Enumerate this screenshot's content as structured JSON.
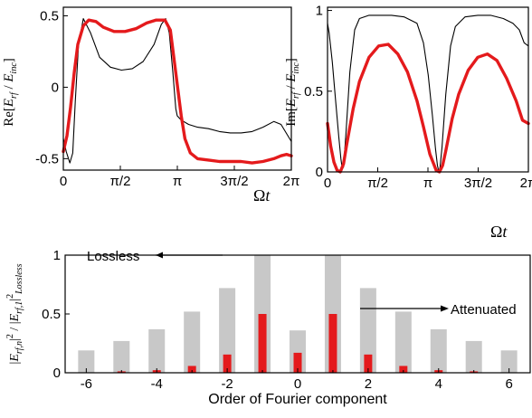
{
  "chart_data": [
    {
      "type": "line",
      "panel": "top-left",
      "ylabel": "Re[E_rf / E_inc]",
      "xlabel": "Ωt",
      "xlim": [
        0,
        6.2832
      ],
      "ylim": [
        -0.58,
        0.56
      ],
      "x_ticks": [
        "0",
        "π/2",
        "π",
        "3π/2",
        "2π"
      ],
      "y_ticks": [
        "-0.5",
        "0",
        "0.5"
      ],
      "series": [
        {
          "style": "thick red",
          "color": "#e41a1c",
          "x": [
            0,
            0.1,
            0.2,
            0.3,
            0.4,
            0.55,
            0.7,
            0.9,
            1.1,
            1.4,
            1.7,
            2.0,
            2.3,
            2.55,
            2.8,
            2.95,
            3.05,
            3.15,
            3.25,
            3.35,
            3.5,
            3.7,
            4.0,
            4.3,
            4.6,
            4.9,
            5.2,
            5.5,
            5.8,
            6.0,
            6.15,
            6.2832
          ],
          "y": [
            -0.45,
            -0.34,
            -0.14,
            0.1,
            0.3,
            0.43,
            0.47,
            0.46,
            0.42,
            0.39,
            0.39,
            0.41,
            0.45,
            0.47,
            0.47,
            0.4,
            0.2,
            0.0,
            -0.2,
            -0.36,
            -0.46,
            -0.5,
            -0.51,
            -0.52,
            -0.52,
            -0.52,
            -0.53,
            -0.52,
            -0.5,
            -0.48,
            -0.47,
            -0.48
          ]
        },
        {
          "style": "thin black",
          "color": "#000000",
          "x": [
            0,
            0.08,
            0.18,
            0.26,
            0.33,
            0.42,
            0.55,
            0.75,
            1.0,
            1.3,
            1.6,
            1.9,
            2.2,
            2.5,
            2.7,
            2.82,
            2.92,
            3.02,
            3.1,
            3.14,
            3.25,
            3.45,
            3.7,
            4.0,
            4.3,
            4.6,
            4.9,
            5.2,
            5.5,
            5.8,
            6.0,
            6.2832
          ],
          "y": [
            -0.36,
            -0.45,
            -0.53,
            -0.46,
            -0.1,
            0.3,
            0.48,
            0.38,
            0.21,
            0.14,
            0.12,
            0.13,
            0.18,
            0.3,
            0.44,
            0.48,
            0.38,
            0.1,
            -0.15,
            -0.2,
            -0.23,
            -0.26,
            -0.28,
            -0.29,
            -0.31,
            -0.32,
            -0.32,
            -0.31,
            -0.28,
            -0.24,
            -0.26,
            -0.38
          ]
        }
      ]
    },
    {
      "type": "line",
      "panel": "top-right",
      "ylabel": "Im[E_rf / E_inc]",
      "xlabel": "Ωt",
      "xlim": [
        0,
        6.2832
      ],
      "ylim": [
        0,
        1.02
      ],
      "x_ticks": [
        "0",
        "π/2",
        "π",
        "3π/2",
        "2π"
      ],
      "y_ticks": [
        "0",
        "0.5",
        "1"
      ],
      "series": [
        {
          "style": "thick red",
          "color": "#e41a1c",
          "x": [
            0,
            0.1,
            0.2,
            0.3,
            0.4,
            0.5,
            0.6,
            0.8,
            1.0,
            1.3,
            1.6,
            1.9,
            2.2,
            2.5,
            2.8,
            3.0,
            3.2,
            3.4,
            3.5,
            3.6,
            3.7,
            3.9,
            4.1,
            4.4,
            4.7,
            5.0,
            5.3,
            5.6,
            5.9,
            6.1,
            6.2832
          ],
          "y": [
            0.3,
            0.16,
            0.06,
            0.01,
            0.0,
            0.05,
            0.17,
            0.39,
            0.56,
            0.71,
            0.78,
            0.79,
            0.73,
            0.62,
            0.44,
            0.28,
            0.11,
            0.01,
            0.0,
            0.04,
            0.13,
            0.33,
            0.48,
            0.63,
            0.71,
            0.73,
            0.69,
            0.58,
            0.44,
            0.32,
            0.3
          ]
        },
        {
          "style": "thin black",
          "color": "#000000",
          "x": [
            0,
            0.05,
            0.15,
            0.25,
            0.35,
            0.42,
            0.46,
            0.5,
            0.58,
            0.7,
            0.85,
            1.0,
            1.3,
            1.6,
            2.0,
            2.4,
            2.8,
            3.0,
            3.15,
            3.28,
            3.38,
            3.44,
            3.48,
            3.52,
            3.58,
            3.7,
            3.85,
            4.0,
            4.3,
            4.7,
            5.1,
            5.5,
            5.8,
            6.0,
            6.15,
            6.2832
          ],
          "y": [
            0.92,
            0.86,
            0.68,
            0.45,
            0.22,
            0.08,
            0.02,
            0.03,
            0.25,
            0.62,
            0.88,
            0.95,
            0.97,
            0.97,
            0.97,
            0.96,
            0.92,
            0.8,
            0.6,
            0.35,
            0.14,
            0.04,
            0.0,
            0.03,
            0.15,
            0.48,
            0.78,
            0.9,
            0.96,
            0.97,
            0.97,
            0.95,
            0.92,
            0.88,
            0.8,
            0.78
          ]
        }
      ]
    },
    {
      "type": "bar",
      "panel": "bottom",
      "xlabel": "Order of Fourier component",
      "ylabel": "|E_rf,n|^2 / |E_rf,1|^2_Lossless",
      "ylim": [
        0,
        1
      ],
      "xlim": [
        -6.6,
        6.6
      ],
      "x_ticks": [
        "-6",
        "-4",
        "-2",
        "0",
        "2",
        "4",
        "6"
      ],
      "y_ticks": [
        "0",
        "0.5",
        "1"
      ],
      "categories": [
        -6,
        -5,
        -4,
        -3,
        -2,
        -1,
        0,
        1,
        2,
        3,
        4,
        5,
        6
      ],
      "series": [
        {
          "color": "#c8c8c8",
          "values": [
            0.19,
            0.27,
            0.37,
            0.52,
            0.72,
            1.0,
            0.36,
            1.0,
            0.72,
            0.52,
            0.37,
            0.27,
            0.19
          ]
        },
        {
          "color": "#e41a1c",
          "values": [
            0.0,
            0.012,
            0.022,
            0.058,
            0.155,
            0.5,
            0.17,
            0.5,
            0.155,
            0.058,
            0.022,
            0.012,
            0.0
          ]
        }
      ],
      "annotations": [
        {
          "text": "Lossless"
        },
        {
          "text": "Attenuated"
        }
      ]
    }
  ]
}
